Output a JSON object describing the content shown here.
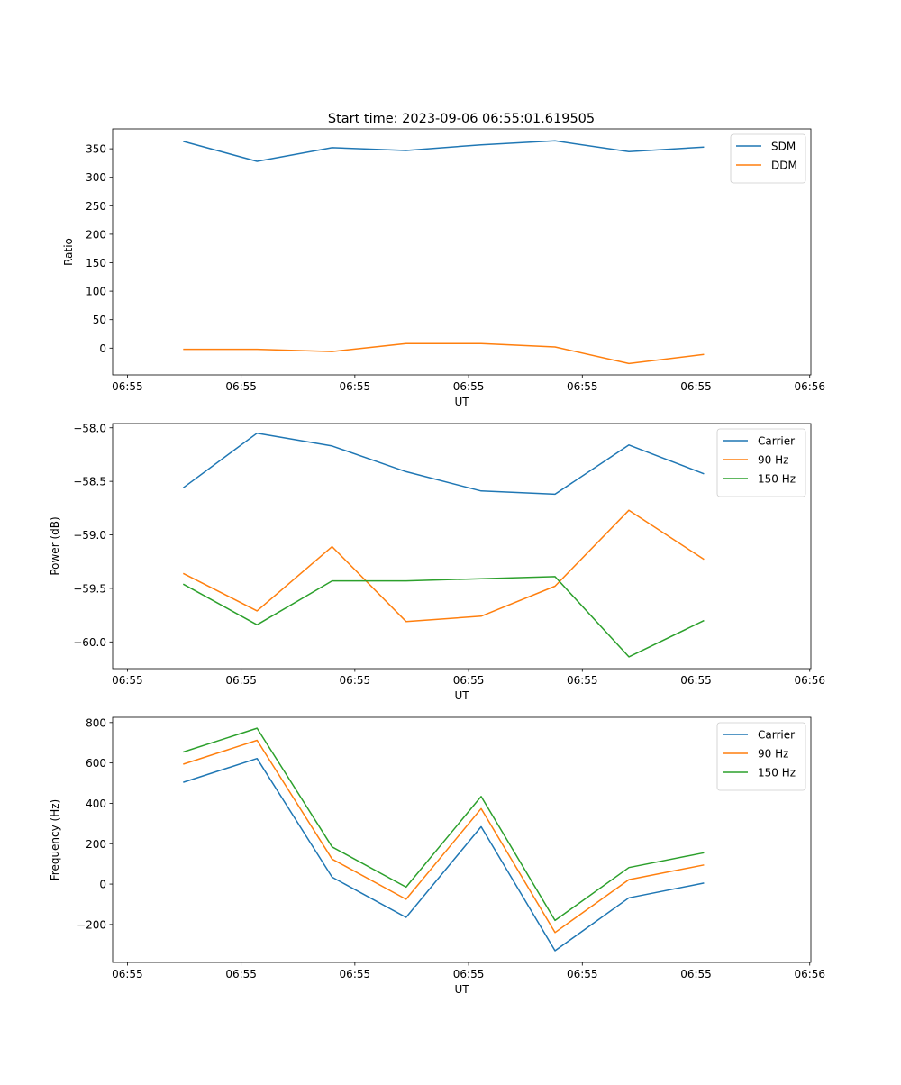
{
  "title": "Start time: 2023-09-06 06:55:01.619505",
  "chart_data": [
    {
      "type": "line",
      "title": "Start time: 2023-09-06 06:55:01.619505",
      "xlabel": "UT",
      "ylabel": "Ratio",
      "x_unit": "seconds after 06:55:00",
      "x": [
        4.9,
        11.4,
        18.0,
        24.5,
        31.1,
        37.6,
        44.1,
        50.7
      ],
      "xlim": [
        -1.3,
        60.1
      ],
      "xticks": [
        0,
        10,
        20,
        30,
        40,
        50,
        60
      ],
      "xtick_labels": [
        "06:55",
        "06:55",
        "06:55",
        "06:55",
        "06:55",
        "06:55",
        "06:56"
      ],
      "ylim": [
        -47,
        385
      ],
      "yticks": [
        0,
        50,
        100,
        150,
        200,
        250,
        300,
        350
      ],
      "ytick_labels": [
        "0",
        "50",
        "100",
        "150",
        "200",
        "250",
        "300",
        "350"
      ],
      "legend": "top-right",
      "series": [
        {
          "name": "SDM",
          "color": "#1f77b4",
          "values": [
            363,
            328,
            352,
            347,
            357,
            364,
            345,
            353
          ]
        },
        {
          "name": "DDM",
          "color": "#ff7f0e",
          "values": [
            -2,
            -2,
            -6,
            8,
            8,
            2,
            -27,
            -11
          ]
        }
      ]
    },
    {
      "type": "line",
      "xlabel": "UT",
      "ylabel": "Power (dB)",
      "x": [
        4.9,
        11.4,
        18.0,
        24.5,
        31.1,
        37.6,
        44.1,
        50.7
      ],
      "xlim": [
        -1.3,
        60.1
      ],
      "xticks": [
        0,
        10,
        20,
        30,
        40,
        50,
        60
      ],
      "xtick_labels": [
        "06:55",
        "06:55",
        "06:55",
        "06:55",
        "06:55",
        "06:55",
        "06:56"
      ],
      "ylim": [
        -60.25,
        -57.96
      ],
      "yticks": [
        -60.0,
        -59.5,
        -59.0,
        -58.5,
        -58.0
      ],
      "ytick_labels": [
        "−60.0",
        "−59.5",
        "−59.0",
        "−58.5",
        "−58.0"
      ],
      "legend": "top-right",
      "series": [
        {
          "name": "Carrier",
          "color": "#1f77b4",
          "values": [
            -58.56,
            -58.05,
            -58.17,
            -58.41,
            -58.59,
            -58.62,
            -58.16,
            -58.43
          ]
        },
        {
          "name": "90 Hz",
          "color": "#ff7f0e",
          "values": [
            -59.36,
            -59.71,
            -59.11,
            -59.81,
            -59.76,
            -59.48,
            -58.77,
            -59.23
          ]
        },
        {
          "name": "150 Hz",
          "color": "#2ca02c",
          "values": [
            -59.46,
            -59.84,
            -59.43,
            -59.43,
            -59.41,
            -59.39,
            -60.14,
            -59.8
          ]
        }
      ]
    },
    {
      "type": "line",
      "xlabel": "UT",
      "ylabel": "Frequency (Hz)",
      "x": [
        4.9,
        11.4,
        18.0,
        24.5,
        31.1,
        37.6,
        44.1,
        50.7
      ],
      "xlim": [
        -1.3,
        60.1
      ],
      "xticks": [
        0,
        10,
        20,
        30,
        40,
        50,
        60
      ],
      "xtick_labels": [
        "06:55",
        "06:55",
        "06:55",
        "06:55",
        "06:55",
        "06:55",
        "06:56"
      ],
      "ylim": [
        -388,
        826
      ],
      "yticks": [
        -200,
        0,
        200,
        400,
        600,
        800
      ],
      "ytick_labels": [
        "−200",
        "0",
        "200",
        "400",
        "600",
        "800"
      ],
      "legend": "top-right",
      "series": [
        {
          "name": "Carrier",
          "color": "#1f77b4",
          "values": [
            504,
            622,
            34,
            -165,
            284,
            -330,
            -68,
            5
          ]
        },
        {
          "name": "90 Hz",
          "color": "#ff7f0e",
          "values": [
            594,
            712,
            124,
            -75,
            374,
            -240,
            22,
            95
          ]
        },
        {
          "name": "150 Hz",
          "color": "#2ca02c",
          "values": [
            654,
            772,
            184,
            -15,
            434,
            -180,
            82,
            155
          ]
        }
      ]
    }
  ]
}
